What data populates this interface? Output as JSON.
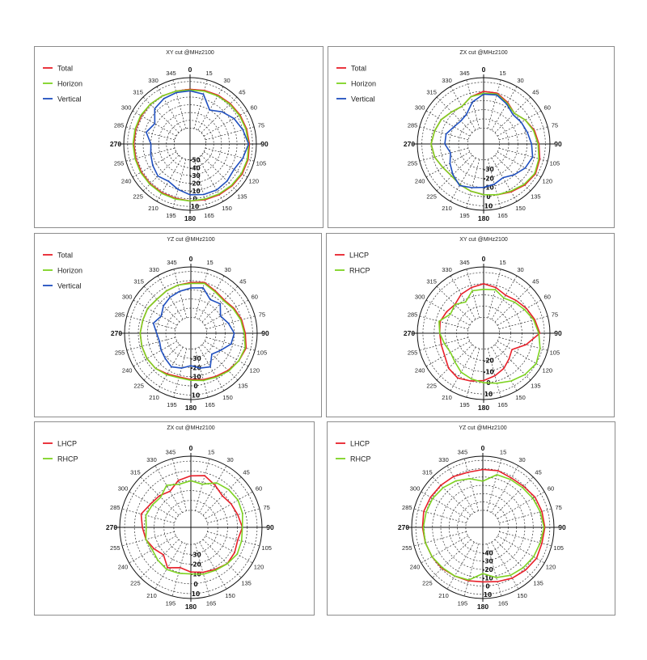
{
  "colors": {
    "red": "#e8202a",
    "green": "#7ed321",
    "blue": "#1f4fbf",
    "grid": "#333333"
  },
  "angle_labels": [
    "0",
    "15",
    "30",
    "45",
    "60",
    "75",
    "90",
    "105",
    "120",
    "135",
    "150",
    "165",
    "180",
    "195",
    "210",
    "225",
    "240",
    "255",
    "270",
    "285",
    "300",
    "315",
    "330",
    "345"
  ],
  "chart_data": [
    {
      "type": "polar",
      "title": "XY cut @MHz2100",
      "radial_ticks": [
        "-50",
        "-40",
        "-30",
        "-20",
        "-10",
        "0",
        "10"
      ],
      "rmin": -50,
      "rmax": 15,
      "series": [
        {
          "name": "Total",
          "color": "red",
          "values": [
            0,
            1,
            2,
            3,
            4,
            5,
            6,
            7,
            7,
            6,
            5,
            4,
            3,
            2,
            2,
            2,
            2,
            2,
            2,
            2,
            2,
            2,
            1,
            0,
            0
          ]
        },
        {
          "name": "Horizon",
          "color": "green",
          "values": [
            -1,
            0,
            1,
            2,
            3,
            4,
            5,
            6,
            6,
            5,
            4,
            3,
            3,
            3,
            3,
            3,
            3,
            3,
            3,
            3,
            3,
            2,
            1,
            0,
            -1
          ]
        },
        {
          "name": "Vertical",
          "color": "blue",
          "values": [
            -2,
            -4,
            -20,
            -12,
            -5,
            0,
            5,
            0,
            -5,
            -3,
            -2,
            -3,
            -5,
            -10,
            -15,
            -12,
            -15,
            -18,
            -20,
            -12,
            -18,
            -6,
            -3,
            -2,
            -2
          ]
        }
      ]
    },
    {
      "type": "polar",
      "title": "ZX cut @MHz2100",
      "radial_ticks": [
        "-30",
        "-20",
        "-10",
        "0",
        "10"
      ],
      "rmin": -40,
      "rmax": 15,
      "series": [
        {
          "name": "Total",
          "color": "red",
          "values": [
            0,
            0,
            -5,
            -10,
            -5,
            0,
            3,
            6,
            8,
            6,
            3,
            0,
            -2,
            -4,
            -6,
            -8,
            -6,
            -2,
            0,
            -2,
            -4,
            -8,
            -10,
            -4,
            0
          ]
        },
        {
          "name": "Horizon",
          "color": "green",
          "values": [
            -2,
            -1,
            -6,
            -10,
            -5,
            -1,
            2,
            5,
            7,
            5,
            2,
            0,
            -2,
            -4,
            -6,
            -8,
            -6,
            -2,
            0,
            -2,
            -4,
            -8,
            -10,
            -4,
            -2
          ]
        },
        {
          "name": "Vertical",
          "color": "blue",
          "values": [
            -3,
            -2,
            -7,
            -12,
            -10,
            -8,
            -5,
            -2,
            -5,
            -10,
            -15,
            -12,
            -10,
            -8,
            -5,
            -10,
            -15,
            -20,
            -15,
            -15,
            -20,
            -22,
            -20,
            -10,
            -3
          ]
        }
      ]
    },
    {
      "type": "polar",
      "title": "YZ cut @MHz2100",
      "radial_ticks": [
        "-30",
        "-20",
        "-10",
        "0",
        "10"
      ],
      "rmin": -40,
      "rmax": 15,
      "series": [
        {
          "name": "Total",
          "color": "red",
          "values": [
            -2,
            0,
            -4,
            -6,
            -3,
            0,
            2,
            5,
            3,
            0,
            -3,
            -5,
            -7,
            -8,
            -6,
            -3,
            -2,
            -2,
            -2,
            -3,
            -3,
            -5,
            -4,
            -3,
            -2
          ]
        },
        {
          "name": "Horizon",
          "color": "green",
          "values": [
            -3,
            -1,
            -5,
            -7,
            -4,
            -1,
            1,
            4,
            3,
            1,
            -2,
            -4,
            -6,
            -7,
            -5,
            -3,
            -2,
            -2,
            -2,
            -3,
            -3,
            -5,
            -4,
            -3,
            -3
          ]
        },
        {
          "name": "Vertical",
          "color": "blue",
          "values": [
            -8,
            -6,
            -15,
            -12,
            -20,
            -15,
            -10,
            -12,
            -20,
            -25,
            -15,
            -18,
            -22,
            -18,
            -15,
            -18,
            -20,
            -22,
            -20,
            -15,
            -20,
            -15,
            -12,
            -10,
            -8
          ]
        }
      ]
    },
    {
      "type": "polar",
      "title": "XY cut @MHz2100",
      "radial_ticks": [
        "-20",
        "-10",
        "0",
        "10"
      ],
      "rmin": -30,
      "rmax": 15,
      "series": [
        {
          "name": "LHCP",
          "color": "red",
          "values": [
            0,
            -2,
            -5,
            -3,
            0,
            3,
            6,
            -5,
            -15,
            -12,
            -8,
            -5,
            -2,
            0,
            2,
            0,
            -4,
            -5,
            -5,
            -4,
            -6,
            -8,
            -4,
            -2,
            0
          ]
        },
        {
          "name": "RHCP",
          "color": "green",
          "values": [
            -5,
            -4,
            -8,
            -5,
            -2,
            2,
            5,
            8,
            10,
            8,
            5,
            2,
            0,
            -2,
            -4,
            -8,
            -10,
            -8,
            -5,
            -3,
            -10,
            -8,
            -12,
            -5,
            -5
          ]
        }
      ]
    },
    {
      "type": "polar",
      "title": "ZX cut @MHz2100",
      "radial_ticks": [
        "-30",
        "-20",
        "-10",
        "0",
        "10"
      ],
      "rmin": -40,
      "rmax": 15,
      "series": [
        {
          "name": "LHCP",
          "color": "red",
          "values": [
            -5,
            -3,
            -8,
            -12,
            -10,
            -8,
            -5,
            -8,
            -6,
            -5,
            -8,
            -10,
            -12,
            -15,
            -10,
            -18,
            -14,
            -10,
            -8,
            -5,
            -10,
            -12,
            -15,
            -8,
            -5
          ]
        },
        {
          "name": "RHCP",
          "color": "green",
          "values": [
            -10,
            -12,
            -5,
            -3,
            -2,
            -3,
            -5,
            -4,
            -3,
            -5,
            -7,
            -8,
            -10,
            -9,
            -8,
            -10,
            -12,
            -10,
            -12,
            -10,
            -12,
            -14,
            -8,
            -12,
            -10
          ]
        }
      ]
    },
    {
      "type": "polar",
      "title": "YZ cut @MHz2100",
      "radial_ticks": [
        "-40",
        "-30",
        "-20",
        "-10",
        "0",
        "10"
      ],
      "rmin": -50,
      "rmax": 15,
      "series": [
        {
          "name": "LHCP",
          "color": "red",
          "values": [
            -1,
            0,
            -2,
            -1,
            2,
            3,
            4,
            3,
            4,
            2,
            0,
            -3,
            -5,
            -4,
            -3,
            -1,
            0,
            1,
            2,
            3,
            2,
            1,
            0,
            -2,
            -1
          ]
        },
        {
          "name": "RHCP",
          "color": "green",
          "values": [
            -15,
            -5,
            -4,
            -3,
            -1,
            1,
            3,
            1,
            0,
            -2,
            -4,
            -8,
            -15,
            -5,
            -3,
            -2,
            0,
            1,
            1,
            0,
            -1,
            -3,
            -6,
            -10,
            -15
          ]
        }
      ]
    }
  ]
}
